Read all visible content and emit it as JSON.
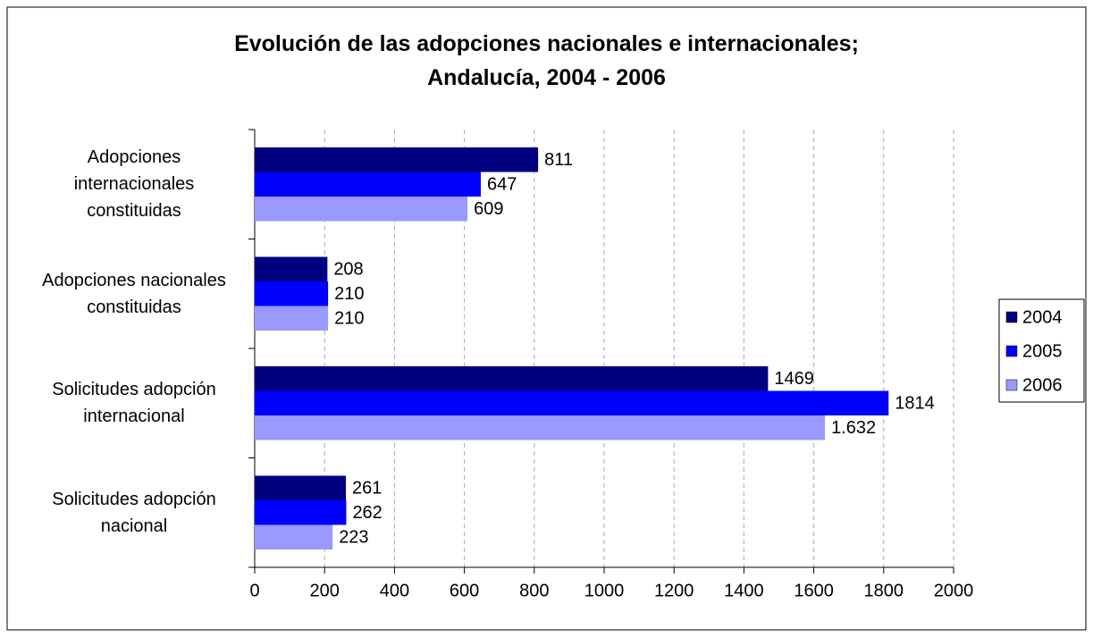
{
  "chart_data": {
    "type": "bar",
    "orientation": "horizontal",
    "title": "Evolución de las adopciones nacionales e internacionales;\nAndalucía, 2004 - 2006",
    "categories": [
      "Adopciones internacionales constituidas",
      "Adopciones nacionales constituidas",
      "Solicitudes adopción internacional",
      "Solicitudes adopción nacional"
    ],
    "series": [
      {
        "name": "2004",
        "color": "#000080",
        "values": [
          811,
          208,
          1469,
          261
        ]
      },
      {
        "name": "2005",
        "color": "#0000ff",
        "values": [
          647,
          210,
          1814,
          262
        ]
      },
      {
        "name": "2006",
        "color": "#9999ff",
        "values": [
          609,
          210,
          1632,
          223
        ],
        "value_labels": [
          "609",
          "210",
          "1.632",
          "223"
        ]
      }
    ],
    "xlim": [
      0,
      2000
    ],
    "xticks": [
      0,
      200,
      400,
      600,
      800,
      1000,
      1200,
      1400,
      1600,
      1800,
      2000
    ],
    "grid": true,
    "legend": "right"
  }
}
